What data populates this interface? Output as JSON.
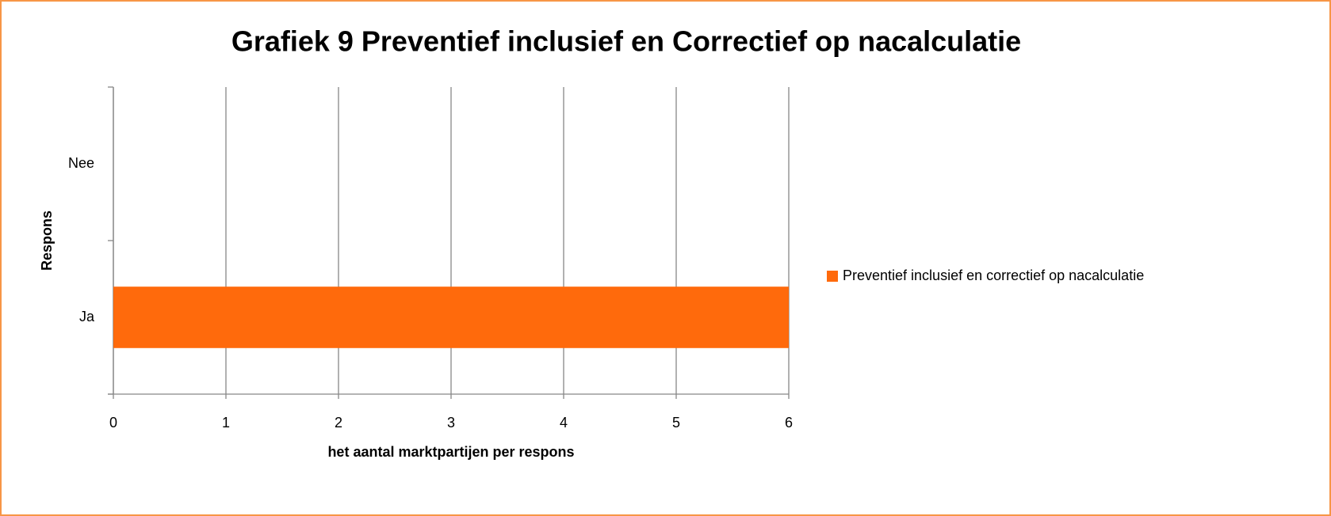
{
  "chart_data": {
    "type": "hbar",
    "title": "Grafiek 9  Preventief inclusief en Correctief op nacalculatie",
    "x_label": "het aantal marktpartijen per respons",
    "y_label": "Respons",
    "categories": [
      "Ja",
      "Nee"
    ],
    "series": [
      {
        "name": "Preventief inclusief en correctief op nacalculatie",
        "color": "#ff6a0c",
        "values": [
          6,
          0
        ]
      }
    ],
    "xlim": [
      0,
      6
    ],
    "xticks": [
      0,
      1,
      2,
      3,
      4,
      5,
      6
    ],
    "grid": true,
    "legend": "right"
  }
}
